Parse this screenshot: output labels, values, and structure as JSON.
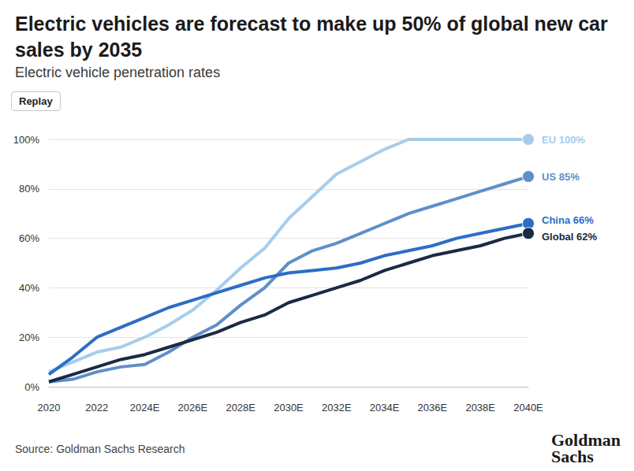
{
  "chart_data": {
    "type": "line",
    "title": "Electric vehicles are forecast to make up 50% of global new car sales by 2035",
    "subtitle": "Electric vehicle penetration rates",
    "button": "Replay",
    "source": "Source: Goldman Sachs Research",
    "logo": [
      "Goldman",
      "Sachs"
    ],
    "categories": [
      "2020",
      null,
      "2022",
      null,
      "2024E",
      null,
      "2026E",
      null,
      "2028E",
      null,
      "2030E",
      null,
      "2032E",
      null,
      "2034E",
      null,
      "2036E",
      null,
      "2038E",
      null,
      "2040E"
    ],
    "series": [
      {
        "name": "EU",
        "color": "#a6cdec",
        "values": [
          6,
          10,
          14,
          16,
          20,
          25,
          31,
          39,
          48,
          56,
          68,
          77,
          86,
          91,
          96,
          100,
          100,
          100,
          100,
          100,
          100
        ],
        "value_labels": [
          null,
          null,
          null,
          null,
          null,
          null,
          null,
          null,
          null,
          null,
          null,
          null,
          null,
          null,
          null,
          null,
          null,
          null,
          null,
          null,
          "EU 100%"
        ]
      },
      {
        "name": "US",
        "color": "#5f8fca",
        "values": [
          2,
          3,
          6,
          8,
          9,
          14,
          20,
          25,
          33,
          40,
          50,
          55,
          58,
          62,
          66,
          70,
          73,
          76,
          79,
          82,
          85
        ],
        "value_labels": [
          null,
          null,
          null,
          null,
          null,
          null,
          null,
          null,
          null,
          null,
          null,
          null,
          null,
          null,
          null,
          null,
          null,
          null,
          null,
          null,
          "US 85%"
        ]
      },
      {
        "name": "China",
        "color": "#2b6ec4",
        "values": [
          5,
          12,
          20,
          24,
          28,
          32,
          35,
          38,
          41,
          44,
          46,
          47,
          48,
          50,
          53,
          55,
          57,
          60,
          62,
          64,
          66
        ],
        "value_labels": [
          null,
          null,
          null,
          null,
          null,
          null,
          null,
          null,
          null,
          null,
          null,
          null,
          null,
          null,
          null,
          null,
          null,
          null,
          null,
          null,
          "China 66%"
        ]
      },
      {
        "name": "Global",
        "color": "#1b2a44",
        "values": [
          2,
          5,
          8,
          11,
          13,
          16,
          19,
          22,
          26,
          29,
          34,
          37,
          40,
          43,
          47,
          50,
          53,
          55,
          57,
          60,
          62
        ],
        "value_labels": [
          null,
          null,
          null,
          null,
          null,
          null,
          null,
          null,
          null,
          null,
          null,
          null,
          null,
          null,
          null,
          null,
          null,
          null,
          null,
          null,
          "Global 62%"
        ]
      }
    ],
    "ylim": [
      0,
      100
    ],
    "yticks": [
      {
        "value": 0,
        "label": "0%"
      },
      {
        "value": 20,
        "label": "20%"
      },
      {
        "value": 40,
        "label": "40%"
      },
      {
        "value": 60,
        "label": "60%"
      },
      {
        "value": 80,
        "label": "80%"
      },
      {
        "value": 100,
        "label": "100%"
      }
    ],
    "grid": true
  }
}
